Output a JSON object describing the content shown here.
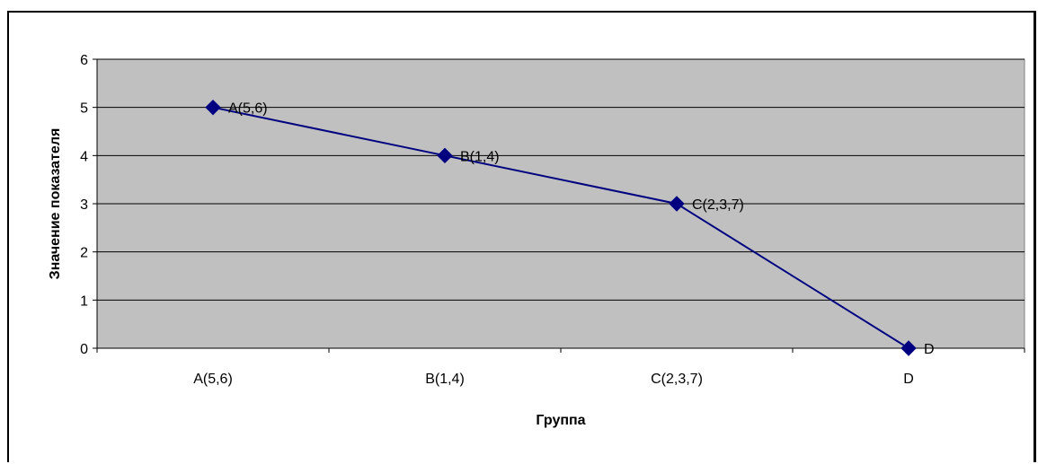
{
  "chart_data": {
    "type": "line",
    "categories": [
      "A(5,6)",
      "B(1,4)",
      "C(2,3,7)",
      "D"
    ],
    "series": [
      {
        "values": [
          5,
          4,
          3,
          0
        ],
        "data_labels": [
          "A(5,6)",
          "B(1,4)",
          "C(2,3,7)",
          "D"
        ]
      }
    ],
    "xlabel": "Группа",
    "ylabel": "Значение показателя",
    "ylim": [
      0,
      6
    ],
    "yticks": [
      "0",
      "1",
      "2",
      "3",
      "4",
      "5",
      "6"
    ],
    "grid": true,
    "legend": "none",
    "colors": {
      "plot_background": "#c0c0c0",
      "line": "#000080",
      "marker": "#000080",
      "gridline": "#000000"
    },
    "marker": "diamond"
  }
}
